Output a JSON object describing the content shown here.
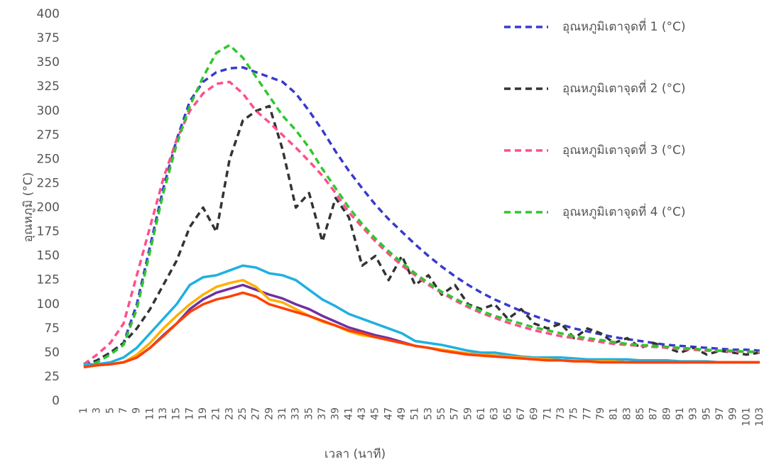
{
  "chart_data": {
    "type": "line",
    "x_label": "เวลา (นาที)",
    "y_label": "อุณหภูมิ (°C)",
    "x": [
      1,
      3,
      5,
      7,
      9,
      11,
      13,
      15,
      17,
      19,
      21,
      23,
      25,
      27,
      29,
      31,
      33,
      35,
      37,
      39,
      41,
      43,
      45,
      47,
      49,
      51,
      53,
      55,
      57,
      59,
      61,
      63,
      65,
      67,
      69,
      71,
      73,
      75,
      77,
      79,
      81,
      83,
      85,
      87,
      89,
      91,
      93,
      95,
      97,
      99,
      101,
      103
    ],
    "xlim": [
      1,
      103
    ],
    "ylim": [
      0,
      400
    ],
    "yticks": [
      0,
      25,
      50,
      75,
      100,
      125,
      150,
      175,
      200,
      225,
      250,
      275,
      300,
      325,
      350,
      375,
      400
    ],
    "grid": false,
    "legend": "right",
    "series": [
      {
        "name": "อุณหภูมิเตาจุดที่ 1 (°C)",
        "color": "#3a3acc",
        "dashed": true,
        "values": [
          38,
          42,
          50,
          60,
          100,
          160,
          220,
          270,
          310,
          330,
          340,
          344,
          345,
          340,
          335,
          330,
          318,
          300,
          280,
          258,
          238,
          220,
          203,
          188,
          175,
          162,
          150,
          139,
          129,
          120,
          112,
          105,
          99,
          93,
          88,
          83,
          79,
          75,
          72,
          69,
          66,
          64,
          62,
          60,
          58,
          57,
          56,
          55,
          54,
          53,
          53,
          52
        ]
      },
      {
        "name": "อุณหภูมิเตาจุดที่ 2 (°C)",
        "color": "#333333",
        "dashed": true,
        "values": [
          36,
          42,
          50,
          60,
          75,
          95,
          120,
          145,
          180,
          200,
          175,
          250,
          290,
          300,
          305,
          260,
          200,
          215,
          165,
          210,
          190,
          140,
          150,
          125,
          150,
          120,
          130,
          110,
          120,
          100,
          95,
          100,
          85,
          95,
          80,
          75,
          80,
          65,
          75,
          70,
          60,
          65,
          55,
          60,
          55,
          50,
          55,
          48,
          52,
          50,
          48,
          50
        ]
      },
      {
        "name": "อุณหภูมิเตาจุดที่ 3 (°C)",
        "color": "#ff4f8b",
        "dashed": true,
        "values": [
          38,
          48,
          60,
          80,
          130,
          180,
          230,
          270,
          300,
          318,
          328,
          330,
          318,
          300,
          288,
          275,
          262,
          248,
          233,
          215,
          195,
          180,
          165,
          152,
          140,
          130,
          120,
          112,
          104,
          97,
          91,
          86,
          81,
          77,
          73,
          70,
          67,
          65,
          63,
          61,
          59,
          58,
          57,
          56,
          55,
          54,
          53,
          52,
          52,
          51,
          51,
          50
        ]
      },
      {
        "name": "อุณหภูมิเตาจุดที่ 4 (°C)",
        "color": "#2fc62f",
        "dashed": true,
        "values": [
          36,
          40,
          48,
          58,
          95,
          155,
          215,
          265,
          305,
          335,
          360,
          368,
          355,
          335,
          315,
          295,
          280,
          262,
          240,
          220,
          200,
          183,
          168,
          155,
          143,
          132,
          122,
          113,
          106,
          99,
          93,
          88,
          84,
          80,
          76,
          73,
          70,
          67,
          65,
          63,
          61,
          59,
          58,
          57,
          56,
          55,
          54,
          53,
          52,
          52,
          51,
          51
        ]
      },
      {
        "color": "#1fb0e0",
        "dashed": false,
        "values": [
          38,
          38,
          40,
          45,
          55,
          70,
          85,
          100,
          120,
          128,
          130,
          135,
          140,
          138,
          132,
          130,
          125,
          115,
          105,
          98,
          90,
          85,
          80,
          75,
          70,
          62,
          60,
          58,
          55,
          52,
          50,
          50,
          48,
          46,
          45,
          45,
          45,
          44,
          43,
          43,
          43,
          43,
          42,
          42,
          42,
          41,
          41,
          41,
          40,
          40,
          40,
          40
        ]
      },
      {
        "color": "#7030a0",
        "dashed": false,
        "values": [
          35,
          37,
          38,
          40,
          45,
          55,
          68,
          80,
          95,
          105,
          112,
          116,
          120,
          115,
          110,
          106,
          100,
          95,
          88,
          82,
          76,
          72,
          68,
          65,
          61,
          57,
          55,
          53,
          51,
          49,
          48,
          47,
          46,
          45,
          44,
          43,
          42,
          42,
          41,
          41,
          41,
          40,
          40,
          40,
          40,
          40,
          40,
          40,
          40,
          40,
          40,
          40
        ]
      },
      {
        "color": "#ffb000",
        "dashed": false,
        "values": [
          35,
          37,
          38,
          40,
          48,
          60,
          75,
          88,
          100,
          110,
          118,
          122,
          125,
          118,
          105,
          102,
          95,
          88,
          82,
          78,
          72,
          68,
          66,
          63,
          60,
          57,
          55,
          53,
          51,
          49,
          48,
          47,
          46,
          45,
          44,
          43,
          42,
          42,
          41,
          41,
          41,
          40,
          40,
          40,
          40,
          40,
          40,
          40,
          40,
          40,
          40,
          40
        ]
      },
      {
        "color": "#ff4000",
        "dashed": false,
        "values": [
          35,
          37,
          38,
          40,
          45,
          55,
          67,
          80,
          92,
          100,
          105,
          108,
          112,
          108,
          100,
          96,
          92,
          88,
          83,
          78,
          73,
          70,
          66,
          63,
          60,
          57,
          55,
          52,
          50,
          48,
          47,
          46,
          45,
          44,
          43,
          42,
          42,
          41,
          41,
          40,
          40,
          40,
          40,
          40,
          40,
          40,
          40,
          40,
          40,
          40,
          40,
          40
        ]
      }
    ]
  }
}
